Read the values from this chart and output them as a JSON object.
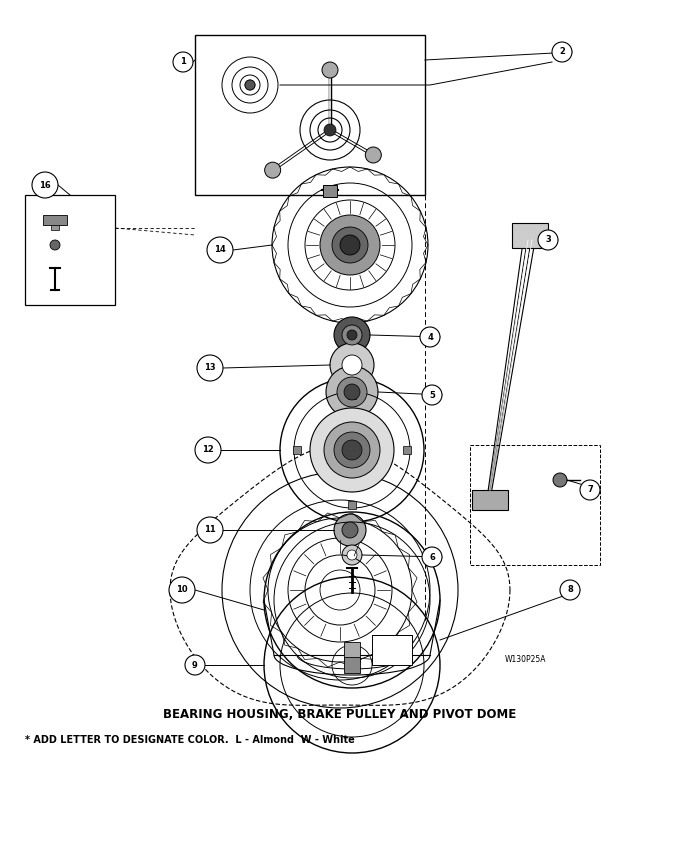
{
  "title": "BEARING HOUSING, BRAKE PULLEY AND PIVOT DOME",
  "subtitle": "* ADD LETTER TO DESIGNATE COLOR.  L - Almond  W - White",
  "watermark": "W130P25A",
  "bg_color": "#ffffff",
  "title_fontsize": 8.5,
  "subtitle_fontsize": 7,
  "figsize": [
    6.8,
    8.52
  ],
  "dpi": 100
}
